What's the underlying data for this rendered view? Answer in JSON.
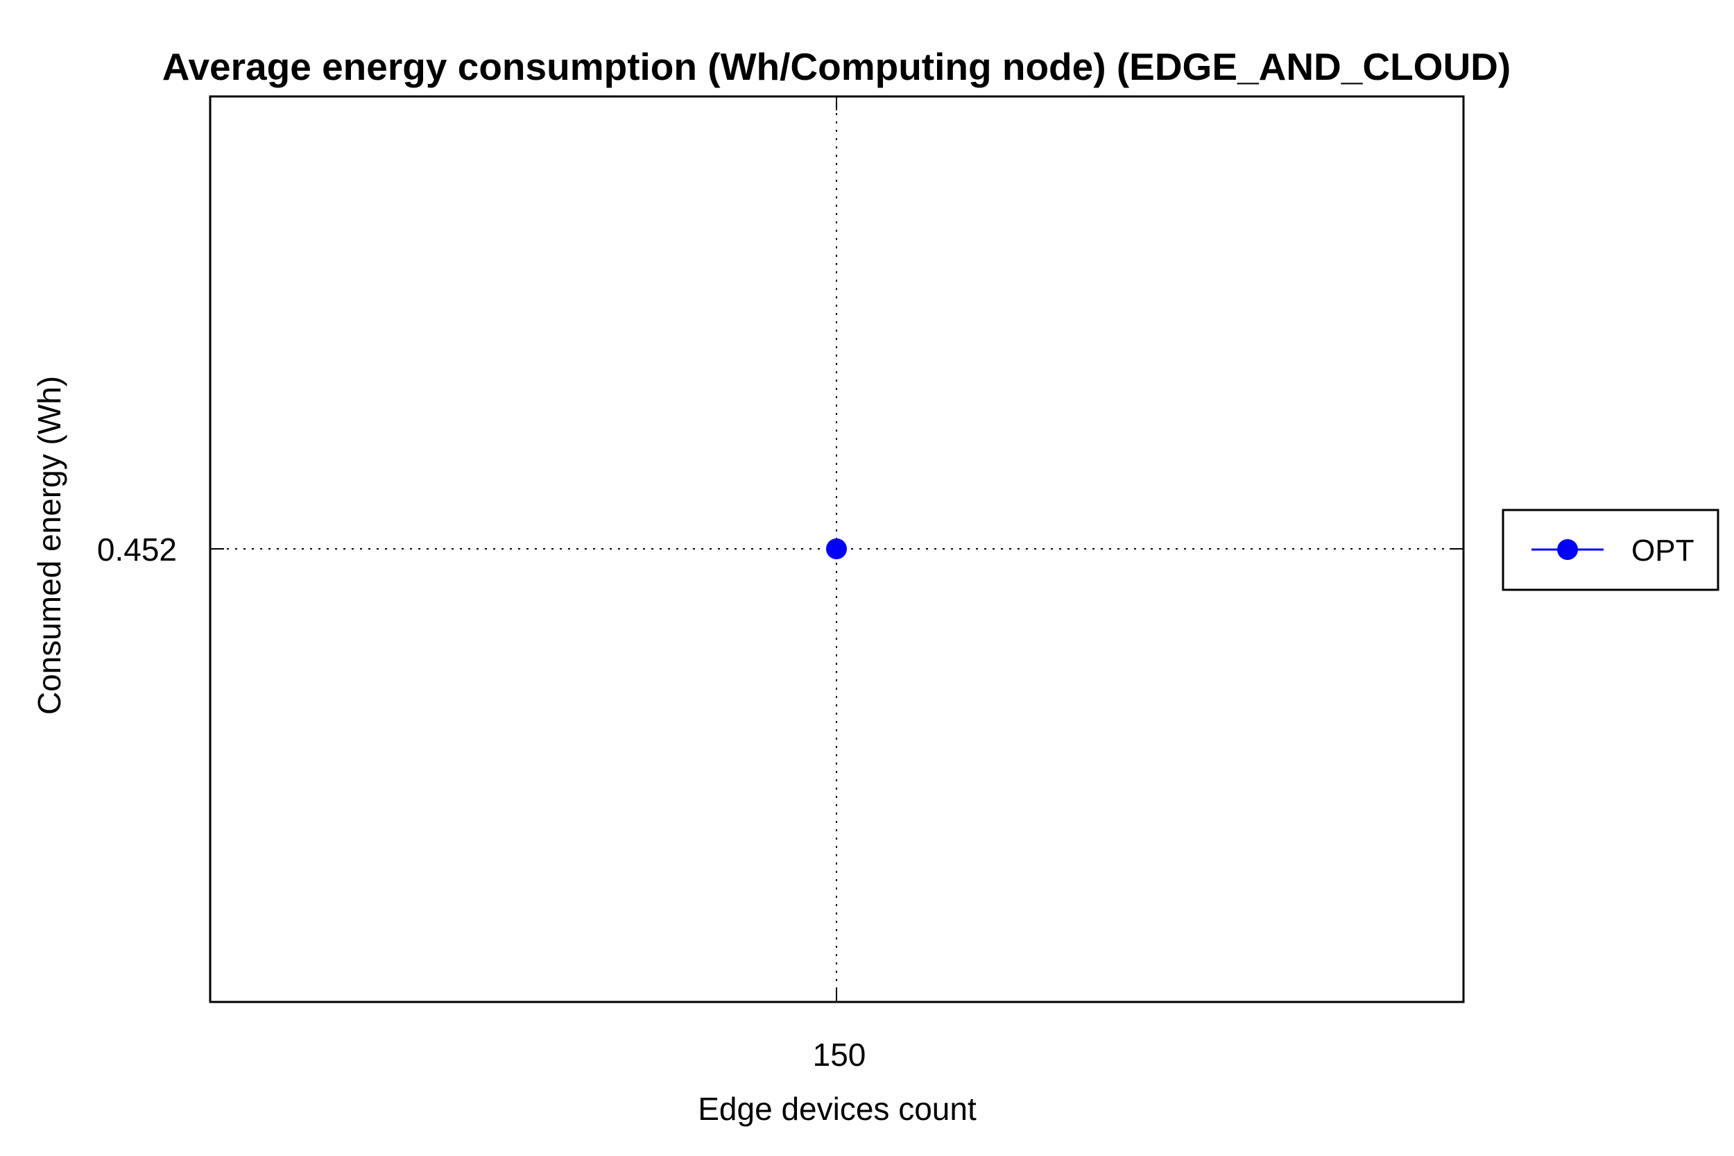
{
  "chart_data": {
    "type": "line",
    "title": "Average energy consumption (Wh/Computing node) (EDGE_AND_CLOUD)",
    "xlabel": "Edge devices count",
    "ylabel": "Consumed energy (Wh)",
    "x_ticks": [
      "150"
    ],
    "y_ticks": [
      "0.452"
    ],
    "x": [
      150
    ],
    "series": [
      {
        "name": "OPT",
        "values": [
          0.452
        ],
        "color": "#0000ff",
        "marker": "circle"
      }
    ],
    "grid": true,
    "legend_position": "right"
  }
}
